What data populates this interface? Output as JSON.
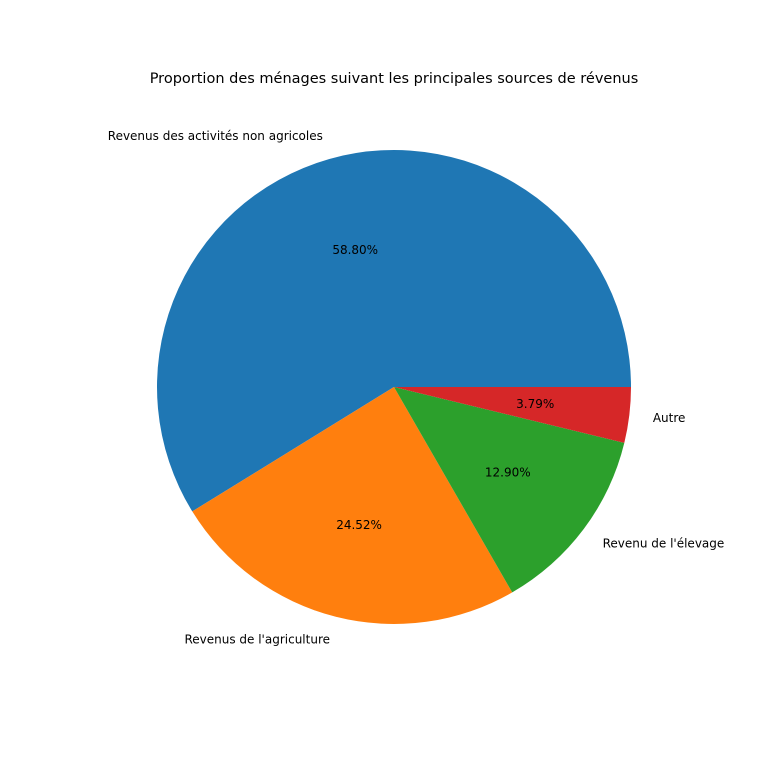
{
  "chart_data": {
    "type": "pie",
    "title": "Proportion des ménages suivant les principales sources de révenus",
    "categories": [
      "Revenus des activités non agricoles",
      "Revenus de l'agriculture",
      "Revenu de l'élevage",
      "Autre"
    ],
    "values": [
      58.8,
      24.52,
      12.9,
      3.79
    ],
    "percent_labels": [
      "58.80%",
      "24.52%",
      "12.90%",
      "3.79%"
    ],
    "colors": [
      "#1f77b4",
      "#ff7f0e",
      "#2ca02c",
      "#d62728"
    ],
    "start_angle_deg": 0,
    "direction": "counterclockwise",
    "legend": "none"
  }
}
